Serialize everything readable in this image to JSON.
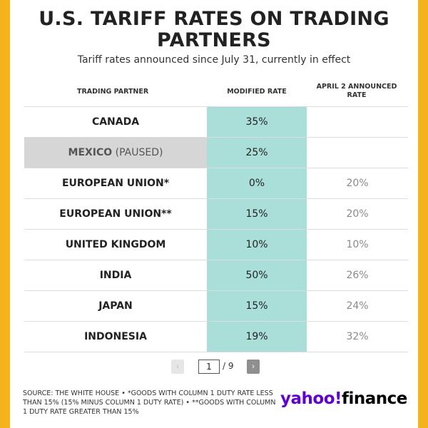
{
  "chart_data": {
    "type": "table",
    "title": "U.S. TARIFF RATES ON TRADING PARTNERS",
    "subtitle": "Tariff rates announced since July 31, currently in effect",
    "columns": [
      "TRADING PARTNER",
      "MODIFIED RATE",
      "APRIL 2 ANNOUNCED RATE"
    ],
    "rows": [
      {
        "partner": "CANADA",
        "suffix": "",
        "modified": "35%",
        "april": ""
      },
      {
        "partner": "MEXICO",
        "suffix": " (PAUSED)",
        "modified": "25%",
        "april": ""
      },
      {
        "partner": "EUROPEAN UNION*",
        "suffix": "",
        "modified": "0%",
        "april": "20%"
      },
      {
        "partner": "EUROPEAN UNION**",
        "suffix": "",
        "modified": "15%",
        "april": "20%"
      },
      {
        "partner": "UNITED KINGDOM",
        "suffix": "",
        "modified": "10%",
        "april": "10%"
      },
      {
        "partner": "INDIA",
        "suffix": "",
        "modified": "50%",
        "april": "26%"
      },
      {
        "partner": "JAPAN",
        "suffix": "",
        "modified": "15%",
        "april": "24%"
      },
      {
        "partner": "INDONESIA",
        "suffix": "",
        "modified": "19%",
        "april": "32%"
      }
    ],
    "highlight_color": "#a9dfd8",
    "paused_color": "#d6d6d6"
  },
  "pager": {
    "prev_glyph": "‹",
    "next_glyph": "›",
    "current_page": "1",
    "total": "/ 9"
  },
  "footer": {
    "source": "SOURCE: THE WHITE HOUSE • *GOODS WITH COLUMN 1 DUTY RATE LESS THAN 15% (15% MINUS COLUMN 1 DUTY RATE) • **GOODS WITH COLUMN 1 DUTY RATE GREATER THAN 15%"
  },
  "logo": {
    "yahoo": "yahoo!",
    "finance": "finance",
    "brand_color": "#6001d2"
  },
  "colors": {
    "frame": "#f6b21b"
  }
}
